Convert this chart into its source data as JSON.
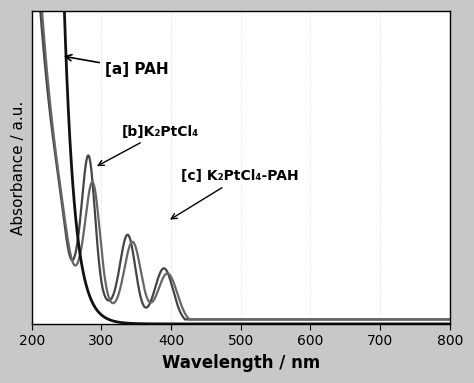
{
  "xlabel": "Wavelength / nm",
  "ylabel": "Absorbance / a.u.",
  "xlim": [
    200,
    800
  ],
  "ylim": [
    0,
    0.35
  ],
  "fig_facecolor": "#c8c8c8",
  "plot_facecolor": "#ffffff",
  "line_a_color": "#111111",
  "line_b_color": "#444444",
  "line_c_color": "#666666",
  "annotation_a": "[a] PAH",
  "annotation_b": "[b]K₂PtCl₄",
  "annotation_c": "[c] K₂PtCl₄-PAH",
  "xticks": [
    200,
    300,
    400,
    500,
    600,
    700,
    800
  ],
  "xlabel_fontsize": 12,
  "ylabel_fontsize": 11,
  "tick_fontsize": 10
}
